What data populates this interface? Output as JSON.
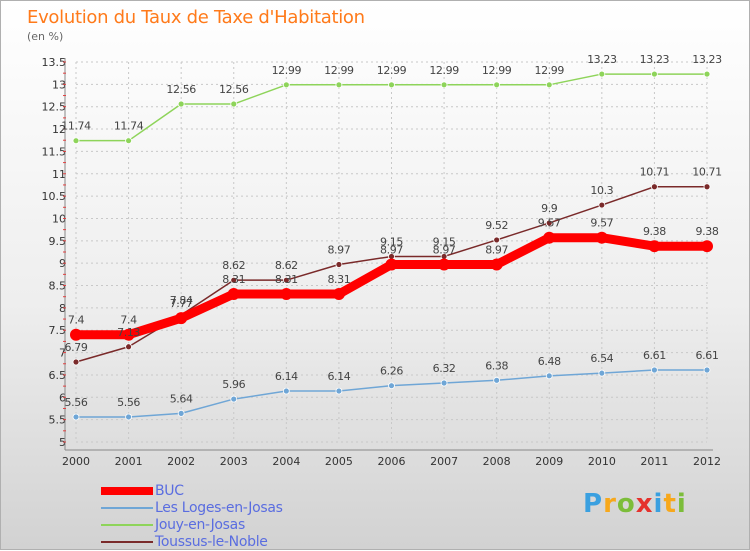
{
  "header": {
    "title": "Evolution du Taux de Taxe d'Habitation",
    "subtitle": "(en %)"
  },
  "logo": {
    "letters": [
      "P",
      "r",
      "o",
      "x",
      "i",
      "t",
      "i"
    ],
    "colors": [
      "#3aa0e0",
      "#f7a81b",
      "#7cbd3a",
      "#e5322d",
      "#3aa0e0",
      "#f7a81b",
      "#7cbd3a"
    ]
  },
  "chart_data": {
    "type": "line",
    "title": "Evolution du Taux de Taxe d'Habitation",
    "ylabel": "(en %)",
    "xlabel": "",
    "x": [
      "2000",
      "2001",
      "2002",
      "2003",
      "2004",
      "2005",
      "2006",
      "2007",
      "2008",
      "2009",
      "2010",
      "2011",
      "2012"
    ],
    "ylim": [
      5,
      13.5
    ],
    "yticks": [
      "5",
      "5.5",
      "6",
      "6.5",
      "7",
      "7.5",
      "8",
      "8.5",
      "9",
      "9.5",
      "10",
      "10.5",
      "11",
      "11.5",
      "12",
      "12.5",
      "13",
      "13.5"
    ],
    "grid": true,
    "legend_position": "bottom-left",
    "series": [
      {
        "name": "BUC",
        "color": "#ff0000",
        "values": [
          7.4,
          7.4,
          7.77,
          8.31,
          8.31,
          8.31,
          8.97,
          8.97,
          8.97,
          9.57,
          9.57,
          9.38,
          9.38
        ],
        "labels": [
          "7.4",
          "7.4",
          "7.77",
          "8.31",
          "8.31",
          "8.31",
          "8.97",
          "8.97",
          "8.97",
          "9.57",
          "9.57",
          "9.38",
          "9.38"
        ]
      },
      {
        "name": "Les Loges-en-Josas",
        "color": "#6fa6d6",
        "values": [
          5.56,
          5.56,
          5.64,
          5.96,
          6.14,
          6.14,
          6.26,
          6.32,
          6.38,
          6.48,
          6.54,
          6.61,
          6.61
        ],
        "labels": [
          "5.56",
          "5.56",
          "5.64",
          "5.96",
          "6.14",
          "6.14",
          "6.26",
          "6.32",
          "6.38",
          "6.48",
          "6.54",
          "6.61",
          "6.61"
        ]
      },
      {
        "name": "Jouy-en-Josas",
        "color": "#8ed45a",
        "values": [
          11.74,
          11.74,
          12.56,
          12.56,
          12.99,
          12.99,
          12.99,
          12.99,
          12.99,
          12.99,
          13.23,
          13.23,
          13.23
        ],
        "labels": [
          "11.74",
          "11.74",
          "12.56",
          "12.56",
          "12.99",
          "12.99",
          "12.99",
          "12.99",
          "12.99",
          "12.99",
          "13.23",
          "13.23",
          "13.23"
        ]
      },
      {
        "name": "Toussus-le-Noble",
        "color": "#7a2a2a",
        "values": [
          6.79,
          7.13,
          7.84,
          8.62,
          8.62,
          8.97,
          9.15,
          9.15,
          9.52,
          9.9,
          10.3,
          10.71,
          10.71
        ],
        "labels": [
          "6.79",
          "7.13",
          "7.84",
          "8.62",
          "8.62",
          "8.97",
          "9.15",
          "9.15",
          "9.52",
          "9.9",
          "10.3",
          "10.71",
          "10.71"
        ]
      }
    ]
  }
}
